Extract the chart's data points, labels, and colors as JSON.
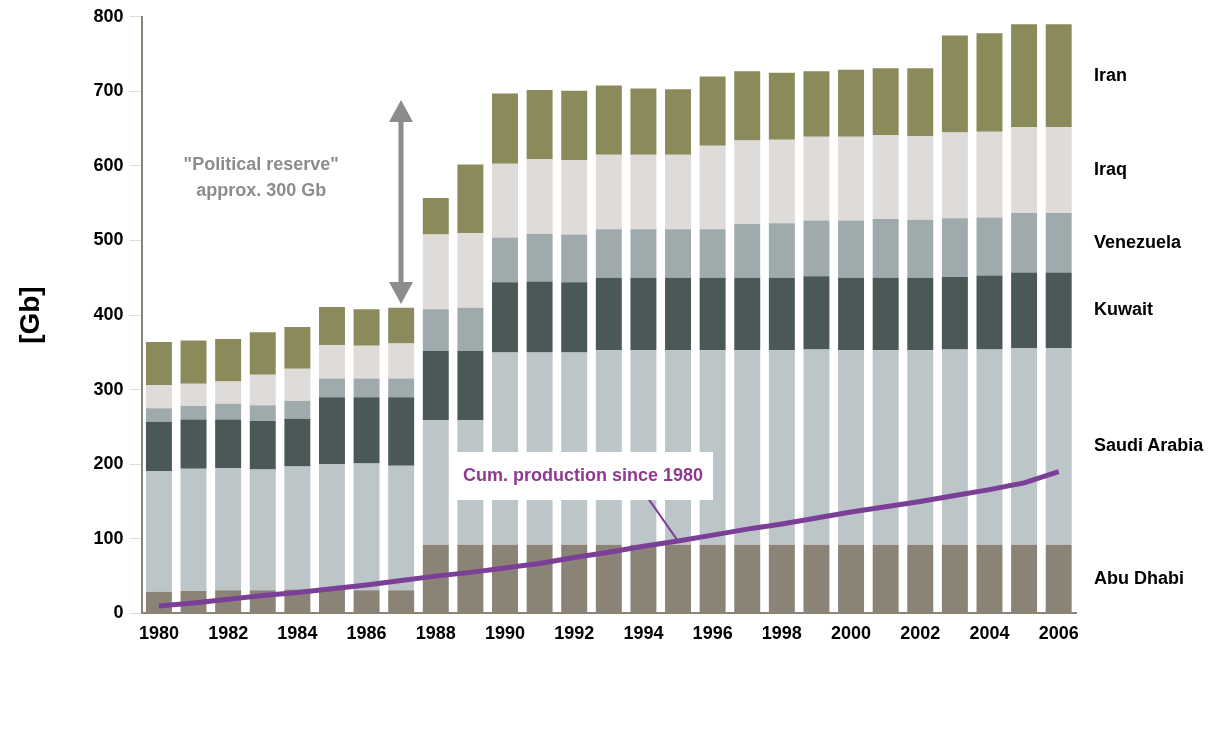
{
  "chart_data": {
    "type": "bar",
    "stacked": true,
    "ylabel": "[Gb]",
    "categories": [
      "1980",
      null,
      "1982",
      null,
      "1984",
      null,
      "1986",
      null,
      "1988",
      null,
      "1990",
      null,
      "1992",
      null,
      "1994",
      null,
      "1996",
      null,
      "1998",
      null,
      "2000",
      null,
      "2002",
      null,
      "2004",
      null,
      "2006"
    ],
    "ylim": [
      0,
      800
    ],
    "yticks": [
      0,
      100,
      200,
      300,
      400,
      500,
      600,
      700,
      800
    ],
    "grid": false,
    "legend": false,
    "annotations": [
      "\"Political reserve\"\napprox. 300 Gb"
    ],
    "series": [
      {
        "name": "Abu Dhabi",
        "color": "#8c8377",
        "values": [
          29,
          30,
          31,
          31,
          32,
          32,
          31,
          31,
          92,
          92,
          92,
          92,
          92,
          92,
          92,
          92,
          92,
          92,
          92,
          92,
          92,
          92,
          92,
          92,
          92,
          92,
          92
        ]
      },
      {
        "name": "Saudi Arabia",
        "color": "#bcc5c7",
        "values": [
          162,
          164,
          164,
          162,
          165,
          168,
          170,
          167,
          167,
          167,
          258,
          258,
          258,
          261,
          261,
          261,
          261,
          261,
          261,
          262,
          261,
          261,
          261,
          262,
          262,
          264,
          264
        ]
      },
      {
        "name": "Kuwait",
        "color": "#4a5858",
        "values": [
          66,
          66,
          65,
          65,
          64,
          90,
          89,
          92,
          93,
          93,
          94,
          95,
          94,
          97,
          97,
          97,
          97,
          97,
          97,
          98,
          97,
          97,
          97,
          97,
          99,
          101,
          101
        ]
      },
      {
        "name": "Venezuela",
        "color": "#9eaaab",
        "values": [
          18,
          18,
          21,
          21,
          24,
          25,
          25,
          25,
          56,
          58,
          60,
          64,
          64,
          65,
          65,
          65,
          65,
          72,
          73,
          75,
          77,
          79,
          78,
          79,
          78,
          80,
          80
        ]
      },
      {
        "name": "Iraq",
        "color": "#dedbd8",
        "values": [
          31,
          30,
          30,
          41,
          43,
          45,
          44,
          47,
          100,
          100,
          99,
          100,
          100,
          100,
          100,
          100,
          112,
          112,
          112,
          112,
          112,
          112,
          112,
          115,
          115,
          115,
          115
        ]
      },
      {
        "name": "Iran",
        "color": "#8a8a5a",
        "values": [
          58,
          58,
          57,
          57,
          56,
          51,
          49,
          48,
          49,
          92,
          94,
          93,
          93,
          93,
          89,
          88,
          93,
          93,
          90,
          88,
          90,
          90,
          91,
          130,
          132,
          138,
          138
        ]
      },
      {
        "name": "Cum. production since 1980",
        "type": "line",
        "color": "#7b3f98",
        "values": [
          10,
          14,
          19,
          24,
          28,
          33,
          38,
          44,
          50,
          55,
          61,
          67,
          75,
          82,
          90,
          97,
          105,
          113,
          120,
          128,
          136,
          143,
          150,
          158,
          166,
          175,
          190
        ]
      }
    ]
  }
}
